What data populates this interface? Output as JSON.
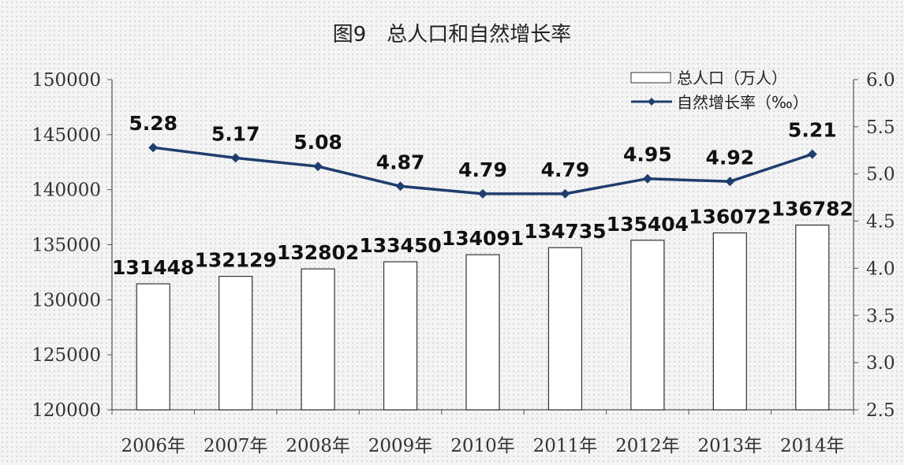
{
  "chart_data": {
    "type": "bar",
    "title": "图9　总人口和自然增长率",
    "categories": [
      "2006年",
      "2007年",
      "2008年",
      "2009年",
      "2010年",
      "2011年",
      "2012年",
      "2013年",
      "2014年"
    ],
    "series": [
      {
        "name": "总人口（万人）",
        "type": "bar",
        "axis": "left",
        "values": [
          131448,
          132129,
          132802,
          133450,
          134091,
          134735,
          135404,
          136072,
          136782
        ]
      },
      {
        "name": "自然增长率（‰）",
        "type": "line",
        "axis": "right",
        "values": [
          5.28,
          5.17,
          5.08,
          4.87,
          4.79,
          4.79,
          4.95,
          4.92,
          5.21
        ]
      }
    ],
    "y_left": {
      "range": [
        120000,
        150000
      ],
      "ticks": [
        "150000",
        "145000",
        "140000",
        "135000",
        "130000",
        "125000",
        "120000"
      ]
    },
    "y_right": {
      "range": [
        2.5,
        6.0
      ],
      "ticks": [
        "6.0",
        "5.5",
        "5.0",
        "4.5",
        "4.0",
        "3.5",
        "3.0",
        "2.5"
      ]
    },
    "grid": false,
    "legend_position": "top-right",
    "colors": {
      "line": "#1f3e6e",
      "bar_fill": "#ffffff",
      "bar_stroke": "#333333"
    }
  }
}
